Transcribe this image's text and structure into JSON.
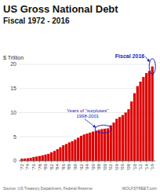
{
  "chart_data": {
    "type": "bar",
    "title": "US Gross National Debt",
    "subtitle": "Fiscal 1972 - 2016",
    "y_label": "$ Trillion",
    "source": "Source: US Treasury Department, Federal Reserve",
    "watermark": "WOLFSTREET.com",
    "x": [
      1972,
      1973,
      1974,
      1975,
      1976,
      1977,
      1978,
      1979,
      1980,
      1981,
      1982,
      1983,
      1984,
      1985,
      1986,
      1987,
      1988,
      1989,
      1990,
      1991,
      1992,
      1993,
      1994,
      1995,
      1996,
      1997,
      1998,
      1999,
      2000,
      2001,
      2002,
      2003,
      2004,
      2005,
      2006,
      2007,
      2008,
      2009,
      2010,
      2011,
      2012,
      2013,
      2014,
      2015,
      2016
    ],
    "values": [
      0.44,
      0.47,
      0.54,
      0.62,
      0.79,
      0.9,
      1.0,
      1.13,
      1.29,
      1.46,
      1.76,
      2.05,
      2.41,
      2.82,
      3.23,
      3.49,
      3.82,
      4.06,
      4.41,
      4.8,
      5.18,
      5.47,
      5.65,
      5.85,
      6.07,
      6.23,
      6.42,
      6.59,
      6.66,
      6.74,
      7.37,
      7.93,
      8.72,
      9.07,
      9.49,
      10.02,
      10.7,
      12.31,
      14.02,
      15.49,
      16.43,
      17.37,
      18.19,
      18.63,
      19.57
    ],
    "color": "#dd0000",
    "xlim": [
      1971,
      2017
    ],
    "xticks": [
      {
        "value": 1972,
        "label": "'72"
      },
      {
        "value": 1974,
        "label": "'74"
      },
      {
        "value": 1976,
        "label": "'76"
      },
      {
        "value": 1978,
        "label": "'78"
      },
      {
        "value": 1980,
        "label": "'80"
      },
      {
        "value": 1982,
        "label": "'82"
      },
      {
        "value": 1984,
        "label": "'84"
      },
      {
        "value": 1986,
        "label": "'86"
      },
      {
        "value": 1988,
        "label": "'88"
      },
      {
        "value": 1990,
        "label": "'90"
      },
      {
        "value": 1992,
        "label": "'92"
      },
      {
        "value": 1994,
        "label": "'94"
      },
      {
        "value": 1996,
        "label": "'96"
      },
      {
        "value": 1998,
        "label": "'98"
      },
      {
        "value": 2000,
        "label": "'00"
      },
      {
        "value": 2002,
        "label": "'02"
      },
      {
        "value": 2004,
        "label": "'04"
      },
      {
        "value": 2006,
        "label": "'06"
      },
      {
        "value": 2008,
        "label": "'08"
      },
      {
        "value": 2010,
        "label": "'10"
      },
      {
        "value": 2012,
        "label": "'12"
      },
      {
        "value": 2014,
        "label": "'14"
      },
      {
        "value": 2016,
        "label": "'16"
      }
    ],
    "ylim": [
      0,
      20
    ],
    "yticks": [
      0,
      5,
      10,
      15,
      20
    ],
    "grid": true,
    "annotations": [
      {
        "text": "Years of \"surpluses\"\n1998-2001",
        "years": [
          1998,
          2001
        ],
        "color": "#2222bb"
      },
      {
        "text": "Fiscal 2016",
        "years": [
          2016,
          2016
        ],
        "color": "#2222bb"
      }
    ]
  }
}
